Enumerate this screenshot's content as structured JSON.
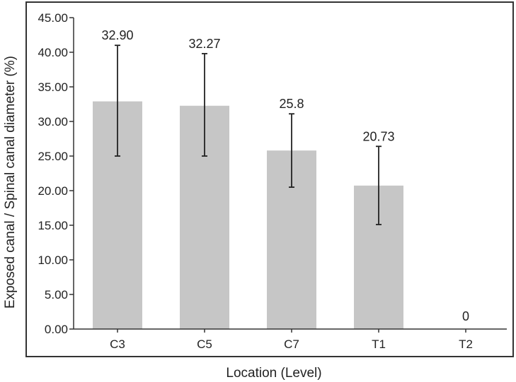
{
  "chart_data": {
    "type": "bar",
    "categories": [
      "C3",
      "C5",
      "C7",
      "T1",
      "T2"
    ],
    "values": [
      32.9,
      32.27,
      25.8,
      20.73,
      0
    ],
    "data_labels": [
      "32.90",
      "32.27",
      "25.8",
      "20.73",
      "0"
    ],
    "error_bars": [
      {
        "low": 25.0,
        "high": 41.0
      },
      {
        "low": 25.0,
        "high": 39.8
      },
      {
        "low": 20.5,
        "high": 31.1
      },
      {
        "low": 15.1,
        "high": 26.4
      },
      null
    ],
    "title": "",
    "xlabel": "Location (Level)",
    "ylabel": "Exposed canal / Spinal canal diameter (%)",
    "ylim": [
      0,
      45
    ],
    "yticks": [
      "0.00",
      "5.00",
      "10.00",
      "15.00",
      "20.00",
      "25.00",
      "30.00",
      "35.00",
      "40.00",
      "45.00"
    ],
    "grid": false,
    "legend": "none",
    "colors": {
      "bar": "#c6c6c6",
      "error_bar": "#222222",
      "axis": "#333333"
    }
  }
}
